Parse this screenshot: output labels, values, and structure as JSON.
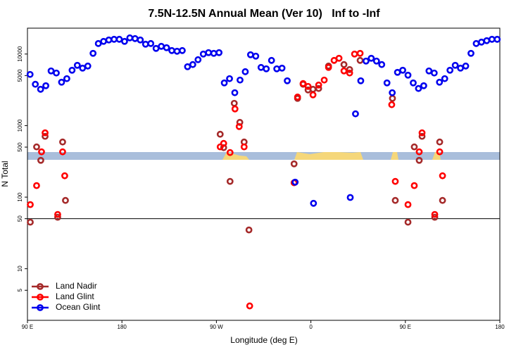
{
  "chart_data": {
    "type": "scatter",
    "title": "7.5N-12.5N Annual Mean (Ver 10)   Inf to -Inf",
    "x_label": "Longitude (deg E)",
    "y_label": "N Total",
    "log_y": true,
    "legend": "lower left",
    "xlim": [
      90,
      540
    ],
    "xticks": [
      {
        "value": 90,
        "label": "90 E"
      },
      {
        "value": 180,
        "label": "180"
      },
      {
        "value": 270,
        "label": "90 W"
      },
      {
        "value": 360,
        "label": "0"
      },
      {
        "value": 450,
        "label": "90 E"
      },
      {
        "value": 540,
        "label": "180"
      }
    ],
    "ylim": [
      1.9,
      23000
    ],
    "yticks": [
      5,
      10,
      50,
      100,
      500,
      1000,
      5000,
      10000
    ],
    "hline": 50,
    "series": [
      {
        "name": "Land Nadir",
        "color": "#a52a2a",
        "x": [
          92.7,
          98.7,
          102.7,
          106.8,
          118.8,
          123.5,
          126.2,
          273.6,
          276.9,
          283,
          287,
          292.3,
          296.4,
          301,
          344,
          347.3,
          352.6,
          357.3,
          362,
          367.4,
          376.8,
          391.5,
          396.9,
          406.9,
          437.7,
          440.4,
          452.5,
          458.5,
          463.2,
          465.9,
          478,
          482.7,
          485.4
        ],
        "values": [
          44.7,
          504,
          327,
          708,
          52.3,
          590,
          90,
          757,
          492,
          166,
          2050,
          1110,
          590,
          34.8,
          292,
          2400,
          3780,
          3150,
          3220,
          3300,
          6800,
          7130,
          6070,
          8150,
          2400,
          90,
          44.7,
          504,
          327,
          708,
          52.3,
          590,
          90
        ]
      },
      {
        "name": "Land Glint",
        "color": "#ff0000",
        "x": [
          92.7,
          98.7,
          103.4,
          106.8,
          118.8,
          123.5,
          125.5,
          273.6,
          276.9,
          283,
          287.7,
          291.7,
          296.4,
          301.7,
          344,
          347.3,
          352.6,
          357.3,
          362,
          367.4,
          372.7,
          376.8,
          382.1,
          386.8,
          391.5,
          396.9,
          401.6,
          406.9,
          437,
          440.4,
          452.5,
          458.5,
          463.2,
          465.9,
          478,
          482.7,
          485.4
        ],
        "values": [
          78.7,
          145,
          430,
          792,
          57.3,
          430,
          199,
          504,
          564,
          420,
          1710,
          970,
          504,
          3.02,
          159,
          2510,
          3870,
          3530,
          2690,
          3690,
          4330,
          6500,
          8150,
          8730,
          5810,
          5430,
          10000,
          10230,
          1960,
          166,
          78.7,
          145,
          430,
          792,
          57.3,
          430,
          199
        ]
      },
      {
        "name": "Ocean Glint",
        "color": "#0000ee",
        "x": [
          92.5,
          97.5,
          102.5,
          107.5,
          112.5,
          117.5,
          122.5,
          127.5,
          132.5,
          137.5,
          142.5,
          147.5,
          152.5,
          157.5,
          162.5,
          167.5,
          172.5,
          177.5,
          182.5,
          187.5,
          192.5,
          197.5,
          202.5,
          207.5,
          212.5,
          217.5,
          222.5,
          227.5,
          232.5,
          237.5,
          242.5,
          247.5,
          252.5,
          257.5,
          262.5,
          267.5,
          272.5,
          277.5,
          282.5,
          287.5,
          292.5,
          297.5,
          302.5,
          307.5,
          312.5,
          317.5,
          322.5,
          327.5,
          332.5,
          337.5,
          345,
          362.5,
          397.5,
          402.5,
          407.5,
          412.5,
          417.5,
          422.5,
          427.5,
          432.5,
          437.5,
          442.5,
          447.5,
          452.5,
          457.5,
          462.5,
          467.5,
          472.5,
          477.5,
          482.5,
          487.5,
          492.5,
          497.5,
          502.5,
          507.5,
          512.5,
          517.5,
          522.5,
          527.5,
          532.5,
          537.5
        ],
        "values": [
          5190,
          3780,
          3220,
          3610,
          5810,
          5430,
          4040,
          4530,
          5940,
          6960,
          6360,
          6800,
          10230,
          14030,
          15030,
          15730,
          16070,
          16070,
          15030,
          16830,
          16450,
          15730,
          13730,
          14030,
          11990,
          12820,
          12270,
          11190,
          10940,
          11190,
          6650,
          7130,
          8340,
          10000,
          10470,
          10230,
          10470,
          3950,
          4530,
          2880,
          4330,
          5670,
          9780,
          9350,
          6500,
          6220,
          8150,
          6220,
          6360,
          4230,
          162,
          82,
          99,
          1460,
          4230,
          7980,
          8730,
          7980,
          7130,
          3950,
          2880,
          5550,
          5940,
          5070,
          3950,
          3300,
          3610,
          5810,
          5430,
          4040,
          4530,
          5940,
          6960,
          6360,
          6800,
          10230,
          14030,
          14690,
          15380,
          16070,
          16070
        ]
      }
    ]
  }
}
